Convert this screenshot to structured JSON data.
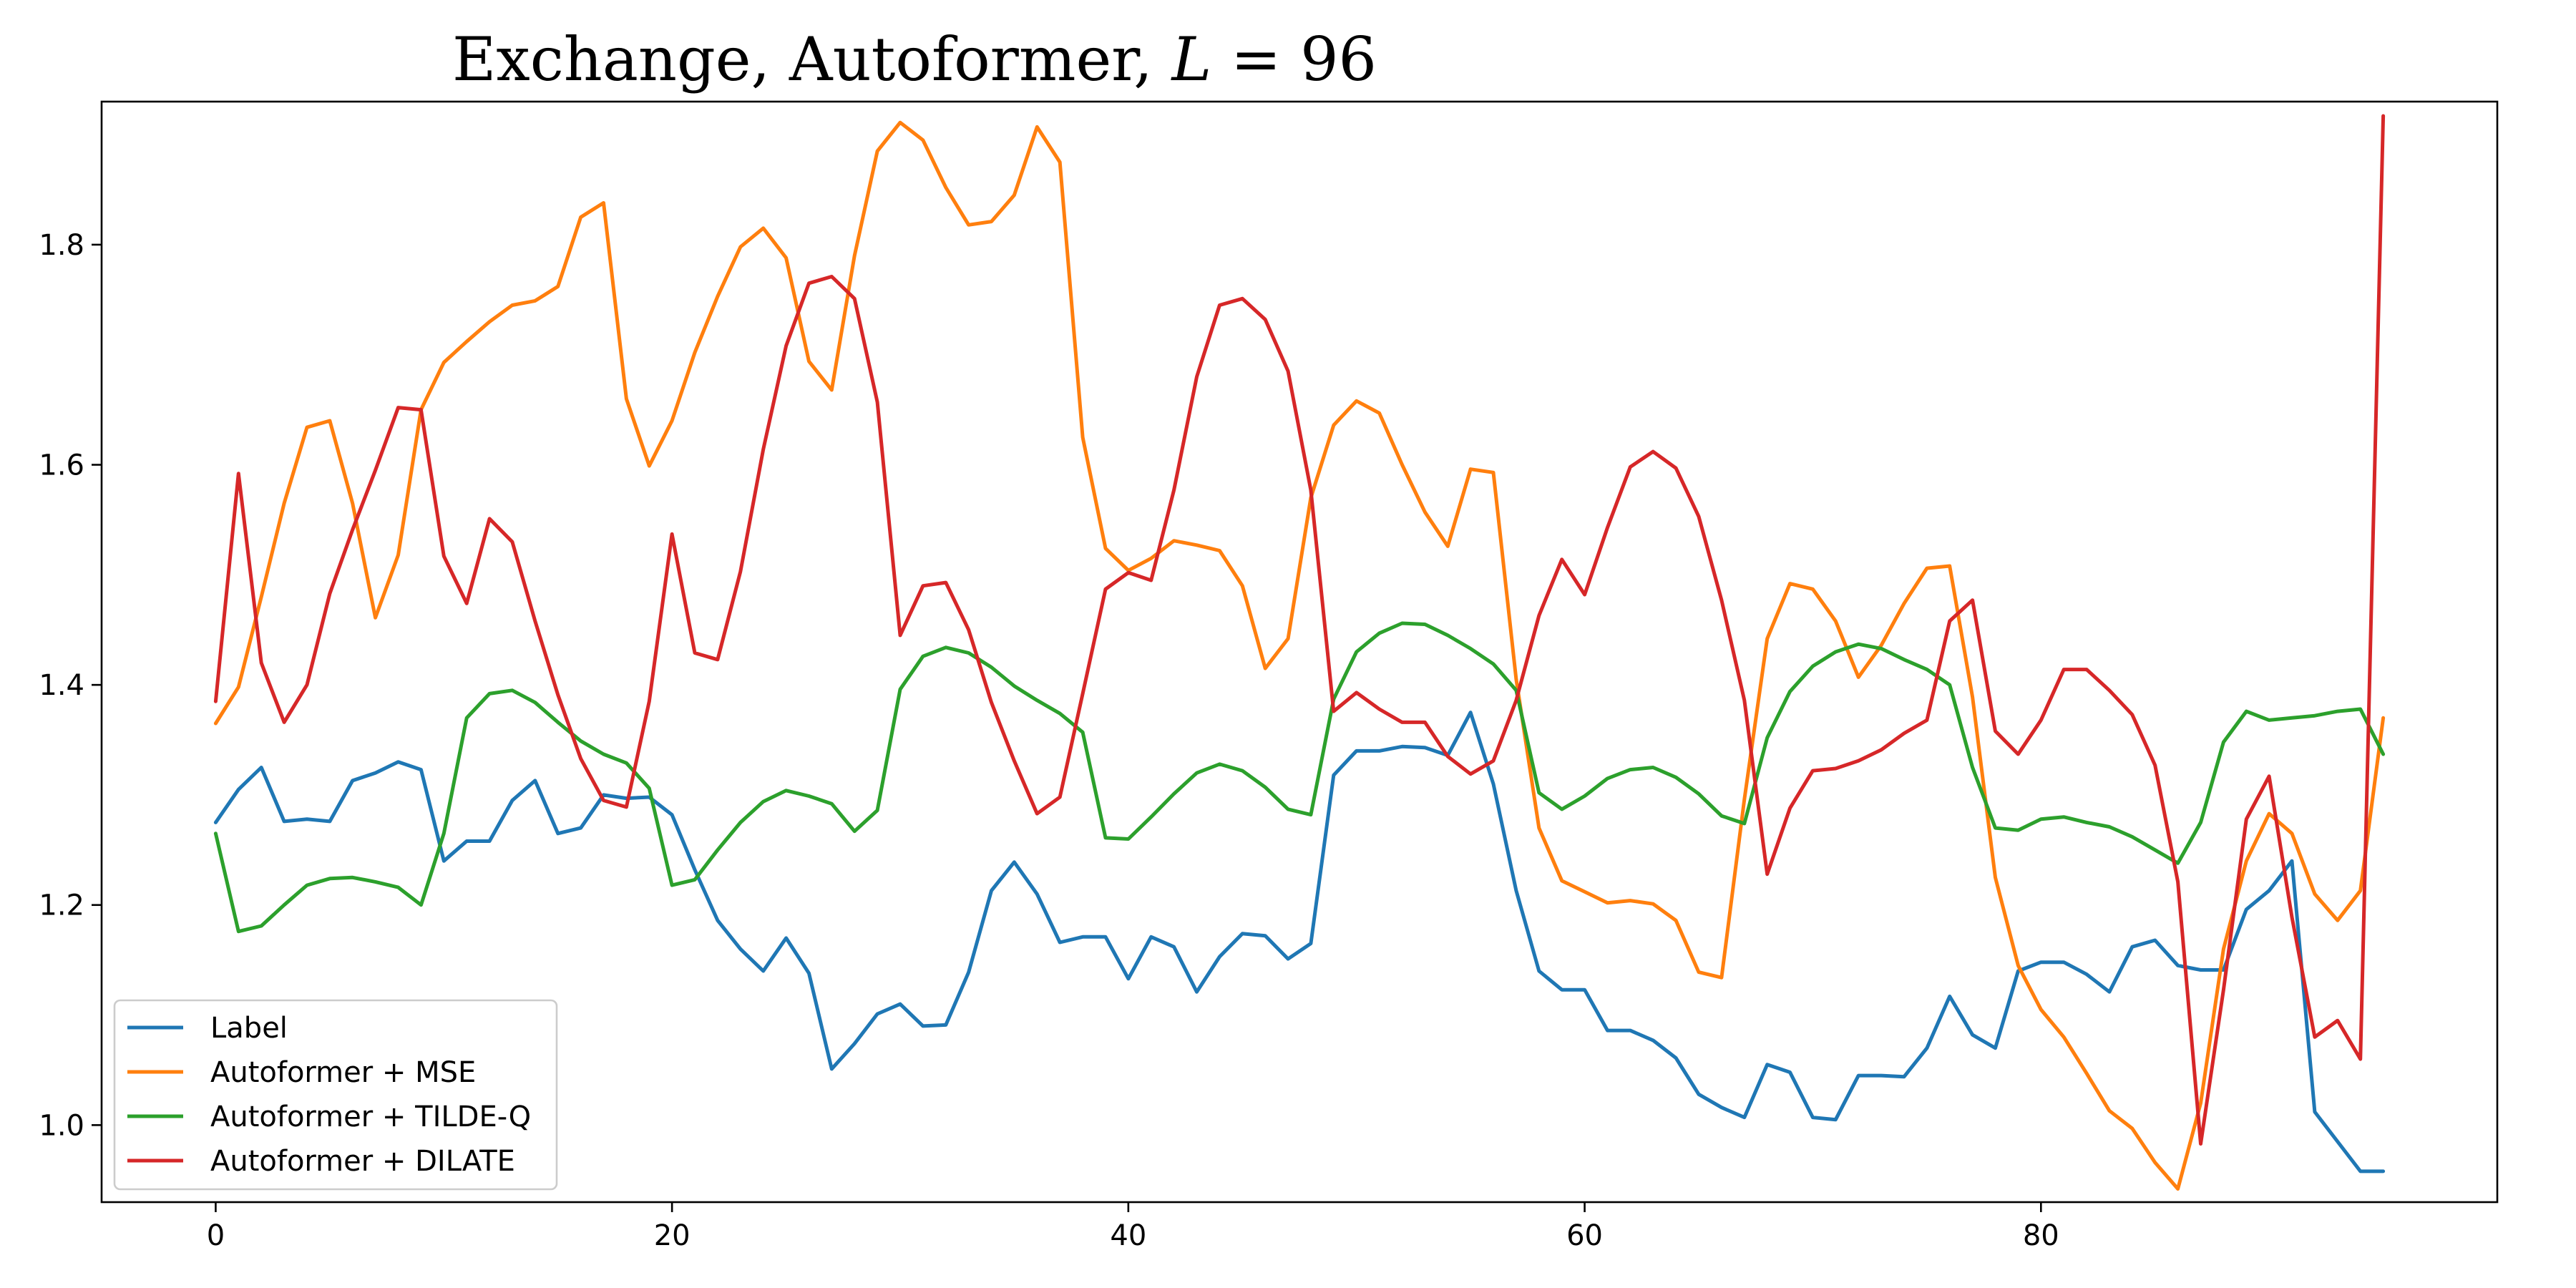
{
  "chart_data": {
    "type": "line",
    "title_prefix": "Exchange, Autoformer, ",
    "title_var": "L",
    "title_suffix": " = 96",
    "xlabel": "",
    "ylabel": "",
    "xlim": [
      -5,
      100
    ],
    "ylim": [
      0.93,
      1.93
    ],
    "xticks": [
      0,
      20,
      40,
      60,
      80
    ],
    "yticks": [
      1.0,
      1.2,
      1.4,
      1.6,
      1.8
    ],
    "grid": false,
    "legend_position": "lower-left",
    "x": [
      0,
      1,
      2,
      3,
      4,
      5,
      6,
      7,
      8,
      9,
      10,
      11,
      12,
      13,
      14,
      15,
      16,
      17,
      18,
      19,
      20,
      21,
      22,
      23,
      24,
      25,
      26,
      27,
      28,
      29,
      30,
      31,
      32,
      33,
      34,
      35,
      36,
      37,
      38,
      39,
      40,
      41,
      42,
      43,
      44,
      45,
      46,
      47,
      48,
      49,
      50,
      51,
      52,
      53,
      54,
      55,
      56,
      57,
      58,
      59,
      60,
      61,
      62,
      63,
      64,
      65,
      66,
      67,
      68,
      69,
      70,
      71,
      72,
      73,
      74,
      75,
      76,
      77,
      78,
      79,
      80,
      81,
      82,
      83,
      84,
      85,
      86,
      87,
      88,
      89,
      90,
      91,
      92,
      93,
      94,
      95
    ],
    "series": [
      {
        "name": "Label",
        "color": "#1f77b4",
        "values": [
          1.275,
          1.305,
          1.325,
          1.276,
          1.278,
          1.276,
          1.313,
          1.32,
          1.33,
          1.323,
          1.24,
          1.258,
          1.258,
          1.295,
          1.313,
          1.265,
          1.27,
          1.3,
          1.297,
          1.298,
          1.282,
          1.232,
          1.186,
          1.16,
          1.14,
          1.17,
          1.138,
          1.051,
          1.074,
          1.101,
          1.11,
          1.09,
          1.091,
          1.139,
          1.213,
          1.239,
          1.21,
          1.166,
          1.171,
          1.171,
          1.133,
          1.171,
          1.162,
          1.121,
          1.153,
          1.174,
          1.172,
          1.151,
          1.165,
          1.318,
          1.34,
          1.34,
          1.344,
          1.343,
          1.336,
          1.375,
          1.31,
          1.213,
          1.14,
          1.123,
          1.123,
          1.086,
          1.086,
          1.077,
          1.061,
          1.028,
          1.016,
          1.007,
          1.055,
          1.048,
          1.007,
          1.005,
          1.045,
          1.045,
          1.044,
          1.07,
          1.117,
          1.082,
          1.07,
          1.14,
          1.148,
          1.148,
          1.137,
          1.121,
          1.162,
          1.168,
          1.145,
          1.141,
          1.141,
          1.196,
          1.213,
          1.24,
          1.012,
          0.985,
          0.958,
          0.958
        ]
      },
      {
        "name": "Autoformer + MSE",
        "color": "#ff7f0e",
        "values": [
          1.365,
          1.398,
          1.48,
          1.565,
          1.634,
          1.64,
          1.565,
          1.461,
          1.518,
          1.65,
          1.693,
          1.712,
          1.73,
          1.745,
          1.749,
          1.762,
          1.825,
          1.838,
          1.66,
          1.599,
          1.64,
          1.702,
          1.753,
          1.798,
          1.815,
          1.788,
          1.694,
          1.668,
          1.79,
          1.885,
          1.911,
          1.895,
          1.852,
          1.818,
          1.821,
          1.845,
          1.907,
          1.875,
          1.625,
          1.524,
          1.504,
          1.515,
          1.531,
          1.527,
          1.522,
          1.49,
          1.415,
          1.442,
          1.57,
          1.636,
          1.658,
          1.647,
          1.6,
          1.557,
          1.526,
          1.596,
          1.593,
          1.405,
          1.27,
          1.222,
          1.212,
          1.202,
          1.204,
          1.201,
          1.186,
          1.139,
          1.134,
          1.296,
          1.442,
          1.492,
          1.487,
          1.458,
          1.407,
          1.436,
          1.474,
          1.506,
          1.508,
          1.389,
          1.225,
          1.145,
          1.105,
          1.08,
          1.047,
          1.013,
          0.997,
          0.966,
          0.942,
          1.02,
          1.16,
          1.24,
          1.283,
          1.265,
          1.21,
          1.186,
          1.213,
          1.37
        ]
      },
      {
        "name": "Autoformer + TILDE-Q",
        "color": "#2ca02c",
        "values": [
          1.265,
          1.176,
          1.181,
          1.2,
          1.218,
          1.224,
          1.225,
          1.221,
          1.216,
          1.2,
          1.265,
          1.37,
          1.392,
          1.395,
          1.384,
          1.366,
          1.349,
          1.337,
          1.329,
          1.306,
          1.218,
          1.223,
          1.25,
          1.275,
          1.294,
          1.304,
          1.299,
          1.292,
          1.267,
          1.286,
          1.396,
          1.426,
          1.434,
          1.429,
          1.416,
          1.399,
          1.386,
          1.374,
          1.357,
          1.261,
          1.26,
          1.28,
          1.301,
          1.32,
          1.328,
          1.322,
          1.307,
          1.287,
          1.282,
          1.387,
          1.43,
          1.447,
          1.456,
          1.455,
          1.445,
          1.433,
          1.419,
          1.395,
          1.302,
          1.287,
          1.299,
          1.315,
          1.323,
          1.325,
          1.316,
          1.301,
          1.281,
          1.274,
          1.352,
          1.394,
          1.417,
          1.43,
          1.437,
          1.433,
          1.423,
          1.414,
          1.4,
          1.325,
          1.27,
          1.268,
          1.278,
          1.28,
          1.275,
          1.271,
          1.262,
          1.25,
          1.238,
          1.275,
          1.348,
          1.376,
          1.368,
          1.37,
          1.372,
          1.376,
          1.378,
          1.337
        ]
      },
      {
        "name": "Autoformer + DILATE",
        "color": "#d62728",
        "values": [
          1.385,
          1.592,
          1.42,
          1.366,
          1.4,
          1.483,
          1.541,
          1.595,
          1.652,
          1.65,
          1.517,
          1.474,
          1.551,
          1.53,
          1.458,
          1.391,
          1.333,
          1.295,
          1.289,
          1.385,
          1.537,
          1.429,
          1.423,
          1.503,
          1.614,
          1.708,
          1.765,
          1.771,
          1.751,
          1.657,
          1.445,
          1.49,
          1.493,
          1.45,
          1.384,
          1.331,
          1.283,
          1.298,
          1.392,
          1.487,
          1.502,
          1.495,
          1.577,
          1.68,
          1.745,
          1.751,
          1.732,
          1.685,
          1.577,
          1.376,
          1.393,
          1.378,
          1.366,
          1.366,
          1.335,
          1.319,
          1.331,
          1.386,
          1.463,
          1.514,
          1.482,
          1.543,
          1.598,
          1.612,
          1.597,
          1.553,
          1.477,
          1.386,
          1.228,
          1.288,
          1.322,
          1.324,
          1.331,
          1.341,
          1.356,
          1.368,
          1.458,
          1.477,
          1.358,
          1.337,
          1.368,
          1.414,
          1.414,
          1.395,
          1.373,
          1.327,
          1.221,
          0.983,
          1.123,
          1.278,
          1.317,
          1.189,
          1.08,
          1.095,
          1.06,
          1.917
        ]
      }
    ]
  }
}
